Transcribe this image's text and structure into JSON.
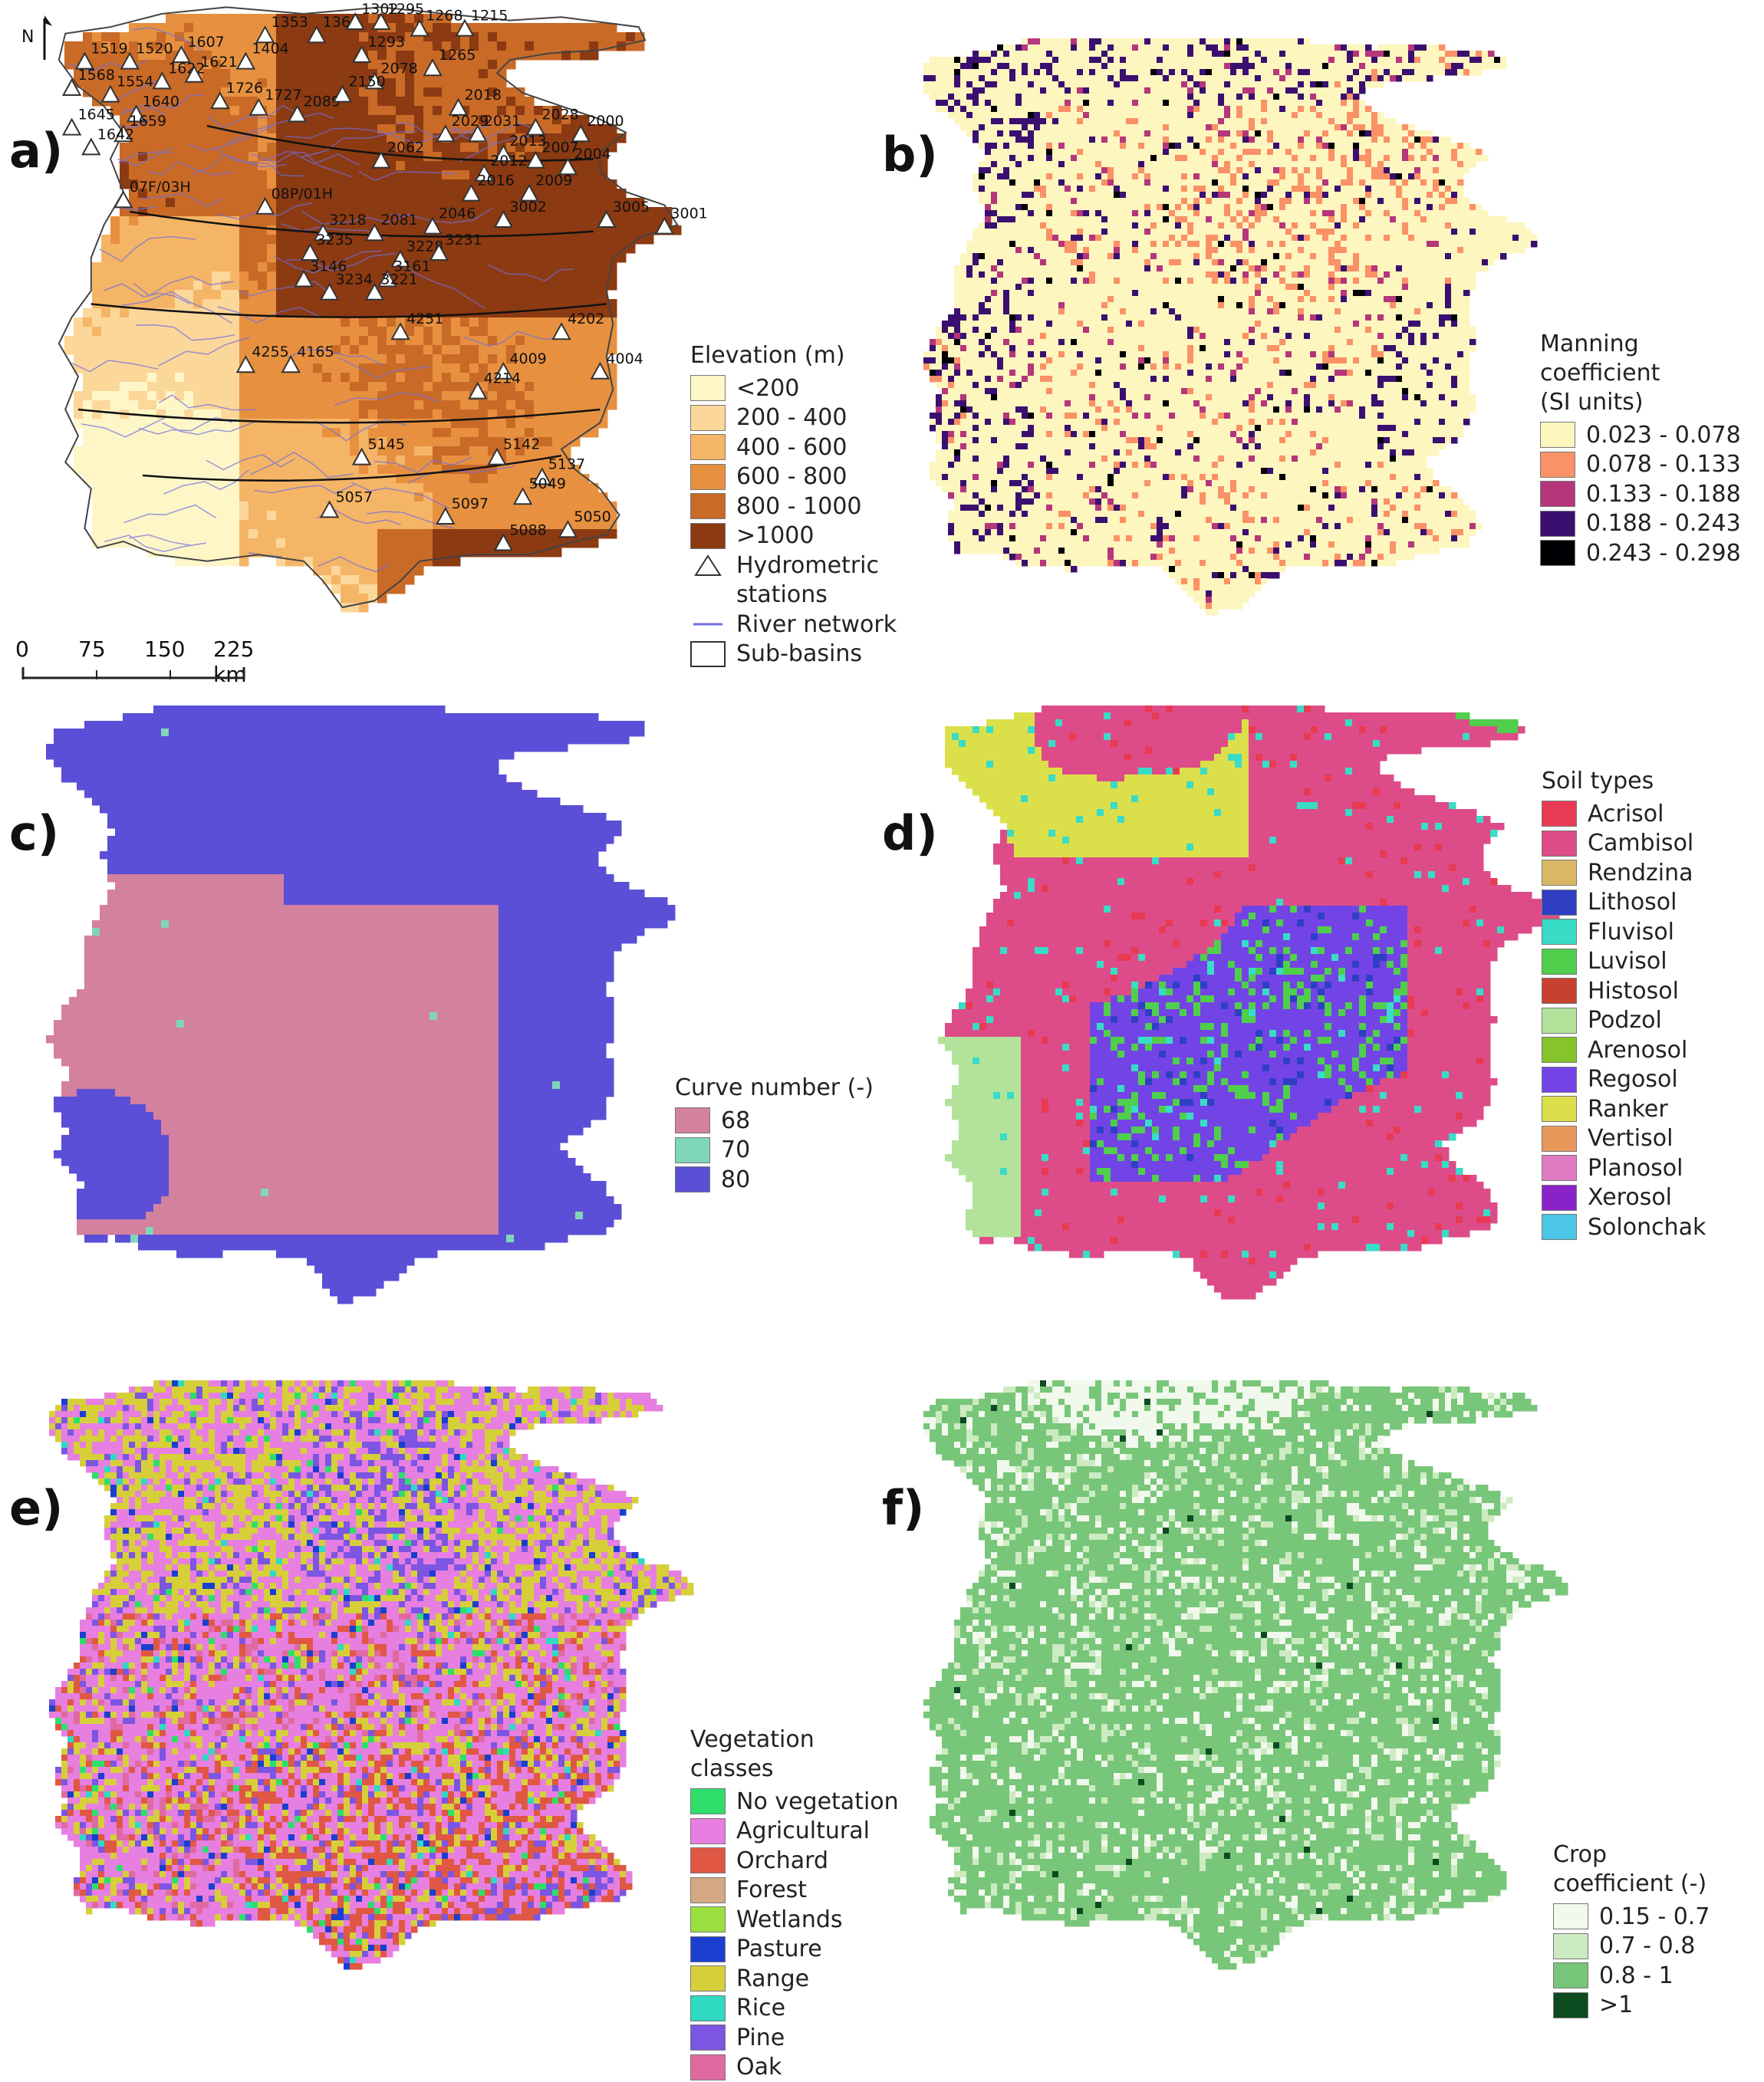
{
  "panels": {
    "a": {
      "label": "a)",
      "north": "N",
      "legend_title": "Elevation (m)",
      "elevation_classes": [
        {
          "label": "<200",
          "color": "#fff6c8"
        },
        {
          "label": "200 - 400",
          "color": "#fcd79a"
        },
        {
          "label": "400 - 600",
          "color": "#f5b566"
        },
        {
          "label": "600 - 800",
          "color": "#e79140"
        },
        {
          "label": "800 - 1000",
          "color": "#c96a27"
        },
        {
          "label": ">1000",
          "color": "#8c3a12"
        }
      ],
      "legend_extra": [
        {
          "label": "Hydrometric",
          "label2": "stations",
          "symbol": "triangle"
        },
        {
          "label": "River network",
          "symbol": "line",
          "color": "#6f6fe0"
        },
        {
          "label": "Sub-basins",
          "symbol": "box"
        }
      ],
      "scale": {
        "ticks": [
          "0",
          "75",
          "150",
          "225 km"
        ]
      },
      "stations": [
        {
          "id": "1519",
          "lon": 0.06,
          "lat": 0.06
        },
        {
          "id": "1520",
          "lon": 0.13,
          "lat": 0.06
        },
        {
          "id": "1607",
          "lon": 0.21,
          "lat": 0.05
        },
        {
          "id": "1622",
          "lon": 0.18,
          "lat": 0.09
        },
        {
          "id": "1621",
          "lon": 0.23,
          "lat": 0.08
        },
        {
          "id": "1568",
          "lon": 0.04,
          "lat": 0.1
        },
        {
          "id": "1554",
          "lon": 0.1,
          "lat": 0.11
        },
        {
          "id": "1640",
          "lon": 0.14,
          "lat": 0.14
        },
        {
          "id": "1645",
          "lon": 0.04,
          "lat": 0.16
        },
        {
          "id": "1659",
          "lon": 0.12,
          "lat": 0.17
        },
        {
          "id": "1642",
          "lon": 0.07,
          "lat": 0.19
        },
        {
          "id": "1353",
          "lon": 0.34,
          "lat": 0.02
        },
        {
          "id": "1365",
          "lon": 0.42,
          "lat": 0.02
        },
        {
          "id": "1404",
          "lon": 0.31,
          "lat": 0.06
        },
        {
          "id": "1302",
          "lon": 0.48,
          "lat": 0.0
        },
        {
          "id": "1295",
          "lon": 0.52,
          "lat": 0.0
        },
        {
          "id": "1268",
          "lon": 0.58,
          "lat": 0.01
        },
        {
          "id": "1215",
          "lon": 0.65,
          "lat": 0.01
        },
        {
          "id": "1293",
          "lon": 0.49,
          "lat": 0.05
        },
        {
          "id": "1265",
          "lon": 0.6,
          "lat": 0.07
        },
        {
          "id": "2078",
          "lon": 0.51,
          "lat": 0.09
        },
        {
          "id": "1726",
          "lon": 0.27,
          "lat": 0.12
        },
        {
          "id": "1727",
          "lon": 0.33,
          "lat": 0.13
        },
        {
          "id": "2089",
          "lon": 0.39,
          "lat": 0.14
        },
        {
          "id": "2150",
          "lon": 0.46,
          "lat": 0.11
        },
        {
          "id": "2018",
          "lon": 0.64,
          "lat": 0.13
        },
        {
          "id": "2028",
          "lon": 0.76,
          "lat": 0.16
        },
        {
          "id": "2000",
          "lon": 0.83,
          "lat": 0.17
        },
        {
          "id": "2031",
          "lon": 0.67,
          "lat": 0.17
        },
        {
          "id": "2029",
          "lon": 0.62,
          "lat": 0.17
        },
        {
          "id": "2013",
          "lon": 0.71,
          "lat": 0.2
        },
        {
          "id": "2007",
          "lon": 0.76,
          "lat": 0.21
        },
        {
          "id": "2004",
          "lon": 0.81,
          "lat": 0.22
        },
        {
          "id": "2062",
          "lon": 0.52,
          "lat": 0.21
        },
        {
          "id": "2012",
          "lon": 0.68,
          "lat": 0.23
        },
        {
          "id": "2016",
          "lon": 0.66,
          "lat": 0.26
        },
        {
          "id": "2009",
          "lon": 0.75,
          "lat": 0.26
        },
        {
          "id": "07F/03H",
          "lon": 0.12,
          "lat": 0.27
        },
        {
          "id": "08P/01H",
          "lon": 0.34,
          "lat": 0.28
        },
        {
          "id": "3002",
          "lon": 0.71,
          "lat": 0.3
        },
        {
          "id": "2046",
          "lon": 0.6,
          "lat": 0.31
        },
        {
          "id": "3005",
          "lon": 0.87,
          "lat": 0.3
        },
        {
          "id": "3001",
          "lon": 0.96,
          "lat": 0.31
        },
        {
          "id": "3218",
          "lon": 0.43,
          "lat": 0.32
        },
        {
          "id": "2081",
          "lon": 0.51,
          "lat": 0.32
        },
        {
          "id": "3235",
          "lon": 0.41,
          "lat": 0.35
        },
        {
          "id": "3228",
          "lon": 0.55,
          "lat": 0.36
        },
        {
          "id": "3231",
          "lon": 0.61,
          "lat": 0.35
        },
        {
          "id": "3146",
          "lon": 0.4,
          "lat": 0.39
        },
        {
          "id": "3161",
          "lon": 0.53,
          "lat": 0.39
        },
        {
          "id": "3234",
          "lon": 0.44,
          "lat": 0.41
        },
        {
          "id": "3221",
          "lon": 0.51,
          "lat": 0.41
        },
        {
          "id": "4251",
          "lon": 0.55,
          "lat": 0.47
        },
        {
          "id": "4202",
          "lon": 0.8,
          "lat": 0.47
        },
        {
          "id": "4255",
          "lon": 0.31,
          "lat": 0.52
        },
        {
          "id": "4165",
          "lon": 0.38,
          "lat": 0.52
        },
        {
          "id": "4009",
          "lon": 0.71,
          "lat": 0.53
        },
        {
          "id": "4004",
          "lon": 0.86,
          "lat": 0.53
        },
        {
          "id": "4214",
          "lon": 0.67,
          "lat": 0.56
        },
        {
          "id": "5145",
          "lon": 0.49,
          "lat": 0.66
        },
        {
          "id": "5142",
          "lon": 0.7,
          "lat": 0.66
        },
        {
          "id": "5137",
          "lon": 0.77,
          "lat": 0.69
        },
        {
          "id": "5049",
          "lon": 0.74,
          "lat": 0.72
        },
        {
          "id": "5057",
          "lon": 0.44,
          "lat": 0.74
        },
        {
          "id": "5097",
          "lon": 0.62,
          "lat": 0.75
        },
        {
          "id": "5050",
          "lon": 0.81,
          "lat": 0.77
        },
        {
          "id": "5088",
          "lon": 0.71,
          "lat": 0.79
        }
      ]
    },
    "b": {
      "label": "b)",
      "legend_title_lines": [
        "Manning",
        "coefficient",
        "(SI units)"
      ],
      "classes": [
        {
          "label": "0.023 - 0.078",
          "color": "#fdf6bf"
        },
        {
          "label": "0.078 - 0.133",
          "color": "#fb9166"
        },
        {
          "label": "0.133 - 0.188",
          "color": "#b5367a"
        },
        {
          "label": "0.188 - 0.243",
          "color": "#3b0f70"
        },
        {
          "label": "0.243 - 0.298",
          "color": "#000004"
        }
      ]
    },
    "c": {
      "label": "c)",
      "legend_title": "Curve number (-)",
      "classes": [
        {
          "label": "68",
          "color": "#d4809f"
        },
        {
          "label": "70",
          "color": "#7fd6b8"
        },
        {
          "label": "80",
          "color": "#5a4fd6"
        }
      ]
    },
    "d": {
      "label": "d)",
      "legend_title": "Soil types",
      "classes": [
        {
          "label": "Acrisol",
          "color": "#e83a52"
        },
        {
          "label": "Cambisol",
          "color": "#dd4c88"
        },
        {
          "label": "Rendzina",
          "color": "#d9b766"
        },
        {
          "label": "Lithosol",
          "color": "#2f3fc4"
        },
        {
          "label": "Fluvisol",
          "color": "#39dcc6"
        },
        {
          "label": "Luvisol",
          "color": "#4fcf4b"
        },
        {
          "label": "Histosol",
          "color": "#c8402e"
        },
        {
          "label": "Podzol",
          "color": "#b3e39a"
        },
        {
          "label": "Arenosol",
          "color": "#85c42a"
        },
        {
          "label": "Regosol",
          "color": "#7244e6"
        },
        {
          "label": "Ranker",
          "color": "#dbe04a"
        },
        {
          "label": "Vertisol",
          "color": "#e8985a"
        },
        {
          "label": "Planosol",
          "color": "#e07bc3"
        },
        {
          "label": "Xerosol",
          "color": "#8a22c9"
        },
        {
          "label": "Solonchak",
          "color": "#4bc6e6"
        }
      ]
    },
    "e": {
      "label": "e)",
      "legend_title": "Vegetation classes",
      "classes": [
        {
          "label": "No vegetation",
          "color": "#2ddf6a"
        },
        {
          "label": "Agricultural",
          "color": "#e77fe0"
        },
        {
          "label": "Orchard",
          "color": "#e05744"
        },
        {
          "label": "Forest",
          "color": "#d4a882"
        },
        {
          "label": "Wetlands",
          "color": "#9adf3e"
        },
        {
          "label": "Pasture",
          "color": "#1a3fd0"
        },
        {
          "label": "Range",
          "color": "#d6cf3a"
        },
        {
          "label": "Rice",
          "color": "#2fd9c2"
        },
        {
          "label": "Pine",
          "color": "#7c55e2"
        },
        {
          "label": "Oak",
          "color": "#e06aa0"
        }
      ]
    },
    "f": {
      "label": "f)",
      "legend_title_lines": [
        "Crop",
        "coefficient (-)"
      ],
      "classes": [
        {
          "label": "0.15 - 0.7",
          "color": "#f1f8ec"
        },
        {
          "label": "0.7 - 0.8",
          "color": "#cdebc2"
        },
        {
          "label": "0.8 - 1",
          "color": "#78c679"
        },
        {
          "label": ">1",
          "color": "#0c4a1f"
        }
      ]
    }
  }
}
